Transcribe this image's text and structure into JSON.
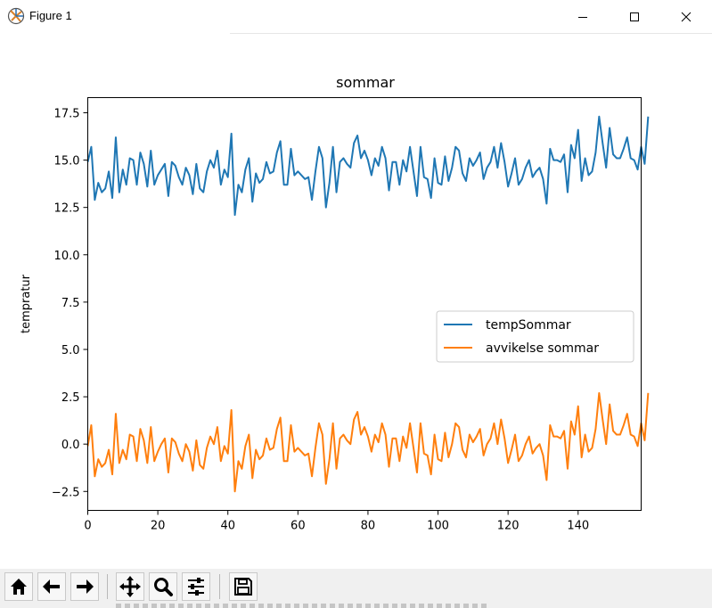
{
  "window": {
    "title": "Figure 1",
    "minimize_icon": "minimize-icon",
    "maximize_icon": "maximize-icon",
    "close_icon": "close-icon"
  },
  "toolbar": {
    "buttons": [
      {
        "name": "home",
        "icon": "home-icon"
      },
      {
        "name": "back",
        "icon": "arrow-left-icon"
      },
      {
        "name": "forward",
        "icon": "arrow-right-icon"
      },
      {
        "name": "pan",
        "icon": "move-icon"
      },
      {
        "name": "zoom",
        "icon": "magnifier-icon"
      },
      {
        "name": "configure-subplots",
        "icon": "sliders-icon"
      },
      {
        "name": "save",
        "icon": "floppy-disk-icon"
      }
    ]
  },
  "chart_data": {
    "type": "line",
    "title": "sommar",
    "xlabel": "",
    "ylabel": "tempratur",
    "xlim": [
      0,
      158
    ],
    "ylim": [
      -3.5,
      18.3
    ],
    "xticks": [
      "0",
      "20",
      "40",
      "60",
      "80",
      "100",
      "120",
      "140"
    ],
    "xtick_values": [
      0,
      20,
      40,
      60,
      80,
      100,
      120,
      140
    ],
    "yticks": [
      "−2.5",
      "0.0",
      "2.5",
      "5.0",
      "7.5",
      "10.0",
      "12.5",
      "15.0",
      "17.5"
    ],
    "ytick_values": [
      -2.5,
      0,
      2.5,
      5,
      7.5,
      10,
      12.5,
      15,
      17.5
    ],
    "grid": false,
    "legend_position": "center-right",
    "series": [
      {
        "name": "tempSommar",
        "color": "#1f77b4",
        "values": [
          14.9,
          15.7,
          12.9,
          13.8,
          13.3,
          13.5,
          14.4,
          13.0,
          16.2,
          13.3,
          14.5,
          13.7,
          15.1,
          15.0,
          13.7,
          15.4,
          14.8,
          13.6,
          15.5,
          13.7,
          14.2,
          14.5,
          14.8,
          13.1,
          14.9,
          14.7,
          14.1,
          13.7,
          14.6,
          14.2,
          13.2,
          14.8,
          13.5,
          13.3,
          14.4,
          15.0,
          14.6,
          15.5,
          13.7,
          14.5,
          14.1,
          16.4,
          12.1,
          13.7,
          13.3,
          14.5,
          15.1,
          12.8,
          14.3,
          13.8,
          14.0,
          14.9,
          14.3,
          14.4,
          15.4,
          16.0,
          13.7,
          13.7,
          15.6,
          14.2,
          14.4,
          14.2,
          14.0,
          14.1,
          12.9,
          14.4,
          15.7,
          15.1,
          12.5,
          13.8,
          15.7,
          13.3,
          14.9,
          15.1,
          14.8,
          14.6,
          15.9,
          16.3,
          15.1,
          15.5,
          15.0,
          14.2,
          15.1,
          14.7,
          15.7,
          15.1,
          13.4,
          14.9,
          14.9,
          13.7,
          15.0,
          14.4,
          15.7,
          14.4,
          13.1,
          15.7,
          14.1,
          14.0,
          13.0,
          15.1,
          13.8,
          13.7,
          15.2,
          13.9,
          14.6,
          15.7,
          15.5,
          14.3,
          13.9,
          15.1,
          14.7,
          15.0,
          15.4,
          14.0,
          14.6,
          14.9,
          15.7,
          14.6,
          15.9,
          14.9,
          13.6,
          14.3,
          15.1,
          13.7,
          14.0,
          14.6,
          15.0,
          14.1,
          14.4,
          14.6,
          14.0,
          12.7,
          15.6,
          15.0,
          15.0,
          14.9,
          15.3,
          13.3,
          15.8,
          15.1,
          16.6,
          13.9,
          15.1,
          14.2,
          14.4,
          15.4,
          17.3,
          15.9,
          14.6,
          16.7,
          15.3,
          15.1,
          15.1,
          15.6,
          16.2,
          15.1,
          15.0,
          14.5,
          15.7,
          14.8,
          17.3
        ]
      },
      {
        "name": "avvikelse sommar",
        "color": "#ff7f0e",
        "values": [
          -0.1,
          1.0,
          -1.7,
          -0.8,
          -1.2,
          -1.0,
          -0.3,
          -1.6,
          1.6,
          -1.0,
          -0.3,
          -0.8,
          0.5,
          0.4,
          -0.9,
          0.8,
          0.2,
          -1.0,
          0.9,
          -0.9,
          -0.4,
          0.0,
          0.3,
          -1.5,
          0.3,
          0.1,
          -0.5,
          -0.9,
          0.0,
          -0.4,
          -1.4,
          0.2,
          -1.1,
          -1.3,
          -0.2,
          0.4,
          0.0,
          0.9,
          -0.9,
          -0.1,
          -0.5,
          1.8,
          -2.5,
          -0.9,
          -1.3,
          -0.1,
          0.5,
          -1.8,
          -0.3,
          -0.8,
          -0.6,
          0.3,
          -0.3,
          -0.2,
          0.8,
          1.4,
          -0.9,
          -0.9,
          1.0,
          -0.4,
          -0.2,
          -0.4,
          -0.6,
          -0.5,
          -1.7,
          -0.2,
          1.1,
          0.5,
          -2.1,
          -0.8,
          1.1,
          -1.3,
          0.3,
          0.5,
          0.2,
          0.0,
          1.3,
          1.7,
          0.5,
          0.9,
          0.4,
          -0.4,
          0.5,
          0.1,
          1.1,
          0.5,
          -1.2,
          0.3,
          0.3,
          -0.9,
          0.4,
          -0.2,
          1.1,
          -0.2,
          -1.5,
          1.1,
          -0.5,
          -0.6,
          -1.6,
          0.5,
          -0.8,
          -0.9,
          0.6,
          -0.7,
          0.0,
          1.1,
          0.9,
          -0.3,
          -0.7,
          0.5,
          0.1,
          0.4,
          0.8,
          -0.6,
          0.0,
          0.3,
          1.1,
          0.0,
          1.3,
          0.3,
          -1.0,
          -0.3,
          0.5,
          -0.9,
          -0.6,
          0.0,
          0.4,
          -0.5,
          -0.2,
          0.0,
          -0.6,
          -1.9,
          1.0,
          0.4,
          0.4,
          0.3,
          0.7,
          -1.3,
          1.2,
          0.5,
          2.0,
          -0.7,
          0.5,
          -0.4,
          -0.2,
          0.8,
          2.7,
          1.3,
          0.0,
          2.1,
          0.7,
          0.5,
          0.5,
          1.0,
          1.6,
          0.5,
          0.4,
          -0.1,
          1.1,
          0.2,
          2.7
        ]
      }
    ]
  }
}
